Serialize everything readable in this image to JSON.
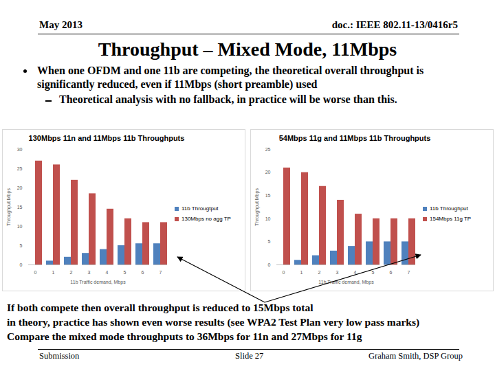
{
  "header": {
    "date": "May 2013",
    "doc": "doc.: IEEE 802.11-13/0416r5"
  },
  "title": "Throughput – Mixed Mode, 11Mbps",
  "bullets": [
    {
      "text": "When one OFDM and one 11b are competing, the theoretical overall throughput is significantly reduced, even if 11Mbps (short preamble) used",
      "sub": [
        "Theoretical analysis with no fallback, in practice will be worse than this."
      ]
    }
  ],
  "caption": [
    "If both compete then overall throughput is reduced to 15Mbps total",
    "in theory, practice has shown even worse results (see WPA2 Test Plan very low pass marks)",
    "Compare the mixed mode throughputs to 36Mbps for 11n and 27Mbps for 11g"
  ],
  "footer": {
    "left": "Submission",
    "center": "Slide 27",
    "right": "Graham Smith, DSP Group"
  },
  "chart_data": [
    {
      "type": "bar",
      "title": "130Mbps 11n and 11Mbps 11b Throughputs",
      "x_label": "11b Traffic demand, Mbps",
      "y_label": "Throughput Mbps",
      "categories": [
        0,
        1,
        2,
        3,
        4,
        5,
        6,
        7
      ],
      "series": [
        {
          "name": "11b Througtput",
          "color": "#4f81bd",
          "values": [
            0,
            1,
            2,
            3,
            4,
            5,
            5.5,
            5.5
          ]
        },
        {
          "name": "130Mbps no agg TP",
          "color": "#c0504d",
          "values": [
            27,
            26,
            22,
            18.5,
            14.5,
            12,
            11,
            11
          ]
        }
      ],
      "ylim": [
        0,
        30
      ],
      "yticks": [
        0,
        5,
        10,
        15,
        20,
        25,
        30
      ],
      "grid": false,
      "legend": "right"
    },
    {
      "type": "bar",
      "title": "54Mbps 11g and 11Mbps 11b Throughputs",
      "x_label": "11b Traffic demand, Mbps",
      "y_label": "Throughput Mbps",
      "categories": [
        0,
        1,
        2,
        3,
        4,
        5,
        6,
        7
      ],
      "series": [
        {
          "name": "11b Throughput",
          "color": "#4f81bd",
          "values": [
            0,
            1,
            2,
            3,
            4,
            5,
            5,
            5
          ]
        },
        {
          "name": "154Mbps 11g TP",
          "color": "#c0504d",
          "values": [
            21,
            20,
            17,
            14,
            11,
            10,
            10,
            10
          ]
        }
      ],
      "ylim": [
        0,
        25
      ],
      "yticks": [
        0,
        5,
        10,
        15,
        20,
        25
      ],
      "grid": false,
      "legend": "right"
    }
  ]
}
